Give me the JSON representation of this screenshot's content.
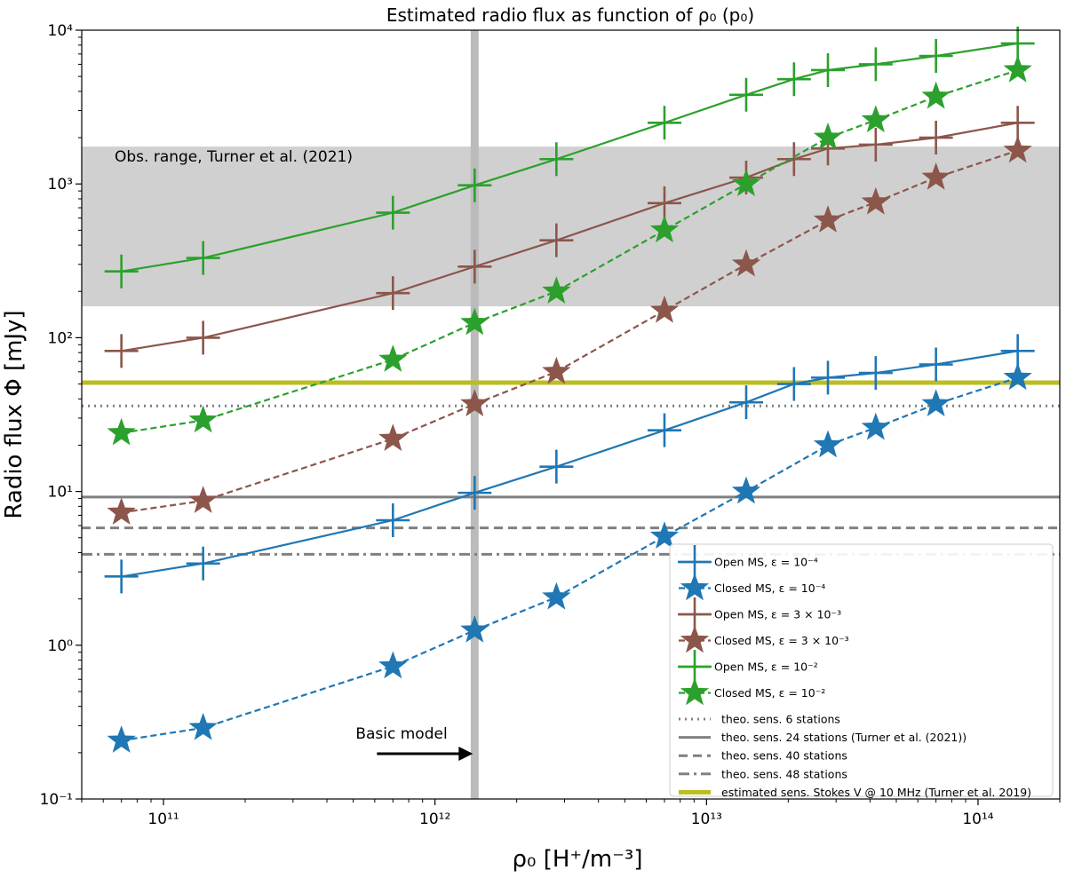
{
  "chart_data": {
    "type": "line",
    "title": "Estimated radio flux as function of ρ₀ (p₀)",
    "xlabel": "ρ₀ [H⁺/m⁻³]",
    "ylabel": "Radio flux Φ [mJy]",
    "xscale": "log",
    "yscale": "log",
    "xlim": [
      50000000000.0,
      200000000000000.0
    ],
    "ylim": [
      0.1,
      10000
    ],
    "x_ticks": [
      {
        "value": 100000000000.0,
        "label": "10¹¹"
      },
      {
        "value": 1000000000000.0,
        "label": "10¹²"
      },
      {
        "value": 10000000000000.0,
        "label": "10¹³"
      },
      {
        "value": 100000000000000.0,
        "label": "10¹⁴"
      }
    ],
    "y_ticks": [
      {
        "value": 0.1,
        "label": "10⁻¹"
      },
      {
        "value": 1,
        "label": "10⁰"
      },
      {
        "value": 10,
        "label": "10¹"
      },
      {
        "value": 100,
        "label": "10²"
      },
      {
        "value": 1000,
        "label": "10³"
      },
      {
        "value": 10000,
        "label": "10⁴"
      }
    ],
    "x": [
      70000000000.0,
      140000000000.0,
      700000000000.0,
      1400000000000.0,
      2800000000000.0,
      7000000000000.0,
      14000000000000.0,
      21000000000000.0,
      28000000000000.0,
      42000000000000.0,
      70000000000000.0,
      140000000000000.0
    ],
    "series": [
      {
        "name": "Open MS, ε = 10⁻⁴",
        "color": "#1f77b4",
        "marker": "plus",
        "linestyle": "solid",
        "values": [
          2.8,
          3.4,
          6.5,
          9.8,
          14.5,
          25,
          38,
          50,
          55,
          59,
          67,
          82
        ]
      },
      {
        "name": "Closed MS, ε = 10⁻⁴",
        "color": "#1f77b4",
        "marker": "star",
        "linestyle": "dashed",
        "values": [
          0.24,
          0.29,
          0.73,
          1.25,
          2.05,
          5.1,
          10,
          null,
          20,
          26,
          37,
          55
        ]
      },
      {
        "name": "Open MS, ε = 3 × 10⁻³",
        "color": "#8c564b",
        "marker": "plus",
        "linestyle": "solid",
        "values": [
          82,
          100,
          195,
          290,
          430,
          750,
          1100,
          1450,
          1700,
          1800,
          2000,
          2500
        ]
      },
      {
        "name": "Closed MS, ε = 3 × 10⁻³",
        "color": "#8c564b",
        "marker": "star",
        "linestyle": "dashed",
        "values": [
          7.3,
          8.7,
          22,
          37,
          60,
          150,
          300,
          null,
          580,
          760,
          1100,
          1650
        ]
      },
      {
        "name": "Open MS, ε = 10⁻²",
        "color": "#2ca02c",
        "marker": "plus",
        "linestyle": "solid",
        "values": [
          270,
          330,
          650,
          980,
          1450,
          2500,
          3800,
          4800,
          5500,
          6000,
          6800,
          8200
        ]
      },
      {
        "name": "Closed MS, ε = 10⁻²",
        "color": "#2ca02c",
        "marker": "star",
        "linestyle": "dashed",
        "values": [
          24,
          29,
          72,
          125,
          200,
          500,
          1000,
          null,
          2000,
          2600,
          3700,
          5500
        ]
      }
    ],
    "hlines": [
      {
        "name": "theo. sens. 6  stations",
        "value": 36,
        "color": "#808080",
        "linestyle": "dotted"
      },
      {
        "name": "theo. sens. 24 stations (Turner et al. (2021))",
        "value": 9.2,
        "color": "#808080",
        "linestyle": "solid"
      },
      {
        "name": "theo. sens. 40 stations",
        "value": 5.8,
        "color": "#808080",
        "linestyle": "dashed"
      },
      {
        "name": "theo. sens. 48 stations",
        "value": 3.9,
        "color": "#808080",
        "linestyle": "dashdot"
      },
      {
        "name": "estimated sens. Stokes V @ 10 MHz (Turner et al. 2019)",
        "value": 51,
        "color": "#bcbd22",
        "linestyle": "solid"
      }
    ],
    "shaded_band": {
      "label": "Obs. range, Turner et al. (2021)",
      "ymin": 160,
      "ymax": 1750,
      "color": "#c8c8c8"
    },
    "vline": {
      "value": 1400000000000.0,
      "color": "#bbbbbb"
    },
    "annotation": {
      "text": "Basic model",
      "arrow_to_x": 1400000000000.0
    },
    "legend_position": "bottom-right"
  }
}
